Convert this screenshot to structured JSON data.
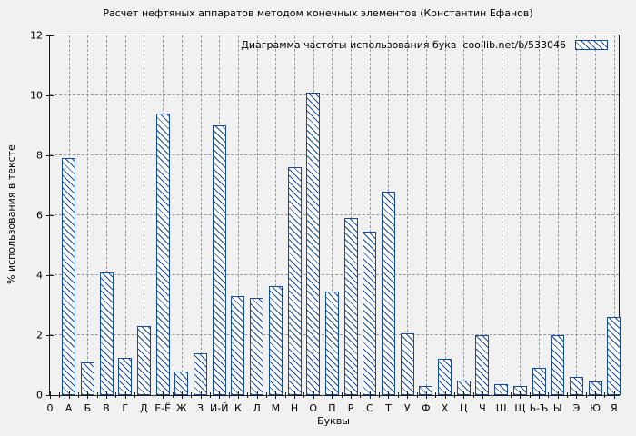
{
  "title": "Расчет нефтяных аппаратов методом конечных элементов (Константин Ефанов)",
  "legend": {
    "label": "Диаграмма частоты использования букв  coollib.net/b/533046"
  },
  "axes": {
    "xlabel": "Буквы",
    "ylabel": "% использования в тексте",
    "origin_label": "0",
    "ytick_labels": [
      "0",
      "2",
      "4",
      "6",
      "8",
      "10",
      "12"
    ]
  },
  "chart_data": {
    "type": "bar",
    "title": "Расчет нефтяных аппаратов методом конечных элементов (Константин Ефанов)",
    "legend_entry": "Диаграмма частоты использования букв  coollib.net/b/533046",
    "xlabel": "Буквы",
    "ylabel": "% использования в тексте",
    "ylim": [
      0,
      12
    ],
    "ytick_step": 2,
    "grid": true,
    "legend_position": "top-right-inside",
    "bar_style": "white fill with blue diagonal hatch and blue edge",
    "categories": [
      "А",
      "Б",
      "В",
      "Г",
      "Д",
      "Е-Ё",
      "Ж",
      "З",
      "И-Й",
      "К",
      "Л",
      "М",
      "Н",
      "О",
      "П",
      "Р",
      "С",
      "Т",
      "У",
      "Ф",
      "Х",
      "Ц",
      "Ч",
      "Ш",
      "Щ",
      "Ь-Ъ",
      "Ы",
      "Э",
      "Ю",
      "Я"
    ],
    "values": [
      7.9,
      1.1,
      4.1,
      1.25,
      2.3,
      9.4,
      0.8,
      1.4,
      9.0,
      3.3,
      3.25,
      3.65,
      7.6,
      10.1,
      3.45,
      5.9,
      5.45,
      6.8,
      2.05,
      0.3,
      1.2,
      0.5,
      2.0,
      0.35,
      0.3,
      0.9,
      2.0,
      0.6,
      0.45,
      2.6
    ]
  },
  "colors": {
    "bar_edge": "#164a9e",
    "bar_fill": "#ffffff",
    "background": "#f1f1f1",
    "grid": "#999999",
    "axis": "#1a1a1a",
    "text": "#000000"
  }
}
